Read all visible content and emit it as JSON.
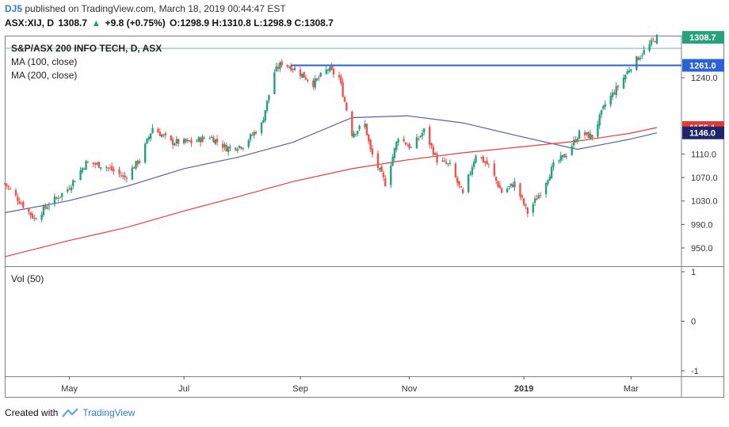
{
  "header": {
    "author": "DJ5",
    "published_text": "published on TradingView.com, March 18, 2019 00:44:47 EST",
    "symbol": "ASX:XIJ, D",
    "last": "1308.7",
    "change": "+9.8 (+0.75%)",
    "ohlc": "O:1298.9 H:1310.8 L:1298.9 C:1308.7"
  },
  "legend": {
    "title": "S&P/ASX 200 INFO TECH, D, ASX",
    "ma100": "MA (100, close)",
    "ma200": "MA (200, close)",
    "volume": "Vol (50)"
  },
  "footer": {
    "created_with": "Created with",
    "brand": "TradingView"
  },
  "colors": {
    "up": "#26a17b",
    "down": "#ef5350",
    "ma100": "#5a5fa8",
    "ma200": "#ef3b3b",
    "hline": "#2b63d6",
    "last_price": "#26a17b",
    "ma200_badge": "#e53935",
    "ma100_badge": "#20266c"
  },
  "chart_data": [
    {
      "type": "candlestick",
      "title": "S&P/ASX 200 INFO TECH, D, ASX",
      "x_labels": [
        "May",
        "Jul",
        "Sep",
        "Nov",
        "2019",
        "Mar"
      ],
      "y_ticks": [
        950,
        990,
        1030,
        1070,
        1110,
        1240
      ],
      "ylim": [
        925,
        1340
      ],
      "price_labels": [
        {
          "name": "last",
          "value": 1308.7,
          "text": "1308.7"
        },
        {
          "name": "horizontal-line",
          "value": 1261.0,
          "text": "1261.0"
        },
        {
          "name": "ma200",
          "value": 1155.1,
          "text": "1155.1"
        },
        {
          "name": "ma100",
          "value": 1146.0,
          "text": "1146.0"
        }
      ],
      "horizontal_line": {
        "value": 1261.0,
        "x_start": "2018-08-29"
      },
      "series": [
        {
          "name": "MA (100, close)",
          "x": [
            "2018-03-27",
            "2018-04-30",
            "2018-06-01",
            "2018-07-02",
            "2018-08-01",
            "2018-08-30",
            "2018-10-01",
            "2018-10-31",
            "2018-11-30",
            "2018-12-31",
            "2019-01-31",
            "2019-02-28",
            "2019-03-15"
          ],
          "values": [
            1010,
            1030,
            1055,
            1085,
            1105,
            1130,
            1172,
            1175,
            1163,
            1140,
            1118,
            1135,
            1146
          ]
        },
        {
          "name": "MA (200, close)",
          "x": [
            "2018-03-27",
            "2018-04-30",
            "2018-06-01",
            "2018-07-02",
            "2018-08-01",
            "2018-08-30",
            "2018-10-01",
            "2018-10-31",
            "2018-11-30",
            "2018-12-31",
            "2019-01-31",
            "2019-02-28",
            "2019-03-15"
          ],
          "values": [
            935,
            962,
            985,
            1013,
            1038,
            1063,
            1085,
            1100,
            1112,
            1122,
            1132,
            1145,
            1155.1
          ]
        },
        {
          "name": "S&P/ASX 200 INFO TECH",
          "x": [
            "2018-03-27",
            "2018-04-04",
            "2018-04-12",
            "2018-04-20",
            "2018-04-30",
            "2018-05-10",
            "2018-05-20",
            "2018-05-31",
            "2018-06-08",
            "2018-06-15",
            "2018-06-25",
            "2018-07-06",
            "2018-07-16",
            "2018-07-25",
            "2018-08-03",
            "2018-08-13",
            "2018-08-20",
            "2018-08-24",
            "2018-08-31",
            "2018-09-10",
            "2018-09-18",
            "2018-09-24",
            "2018-10-01",
            "2018-10-08",
            "2018-10-11",
            "2018-10-19",
            "2018-10-26",
            "2018-11-02",
            "2018-11-09",
            "2018-11-16",
            "2018-11-23",
            "2018-11-30",
            "2018-12-07",
            "2018-12-14",
            "2018-12-21",
            "2018-12-28",
            "2019-01-04",
            "2019-01-11",
            "2019-01-18",
            "2019-01-25",
            "2019-02-01",
            "2019-02-08",
            "2019-02-15",
            "2019-02-22",
            "2019-03-01",
            "2019-03-08",
            "2019-03-15"
          ],
          "values": [
            1060,
            1030,
            1000,
            1025,
            1050,
            1095,
            1090,
            1070,
            1100,
            1155,
            1130,
            1130,
            1140,
            1120,
            1125,
            1160,
            1250,
            1265,
            1255,
            1230,
            1255,
            1240,
            1145,
            1160,
            1115,
            1060,
            1140,
            1120,
            1150,
            1100,
            1090,
            1040,
            1110,
            1090,
            1045,
            1060,
            1010,
            1045,
            1090,
            1110,
            1145,
            1140,
            1195,
            1225,
            1260,
            1285,
            1308.7
          ]
        }
      ]
    },
    {
      "type": "bar",
      "title": "Vol (50)",
      "y_ticks": [
        1,
        0,
        -1
      ],
      "ylim": [
        -1,
        1
      ],
      "values": []
    }
  ]
}
